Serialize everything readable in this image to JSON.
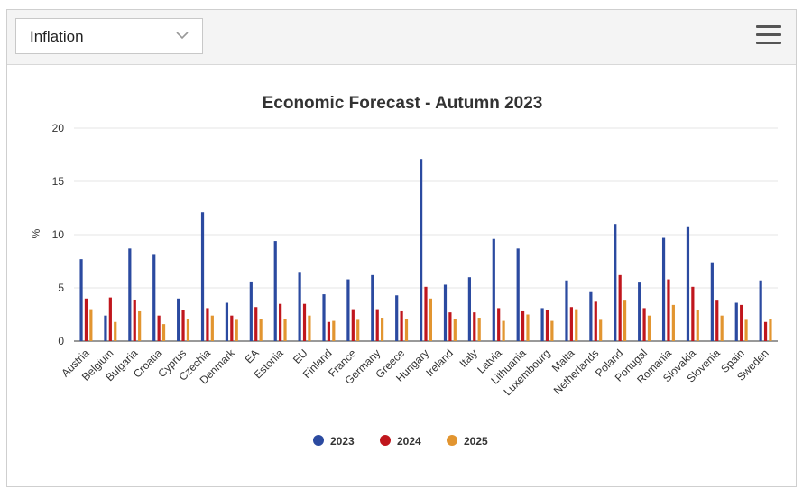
{
  "dropdown": {
    "selected": "Inflation"
  },
  "colors": {
    "2023": "#2b4aa0",
    "2024": "#c0161d",
    "2025": "#e29530",
    "grid": "#e6e6e6",
    "axis": "#333333"
  },
  "icons": {
    "dropdown": "chevron-down-icon",
    "menu": "hamburger-menu-icon"
  },
  "chart_data": {
    "type": "bar",
    "title": "Economic Forecast - Autumn 2023",
    "ylabel": "%",
    "xlabel": "",
    "ylim": [
      0,
      20
    ],
    "yticks": [
      "0",
      "5",
      "10",
      "15",
      "20"
    ],
    "grid": true,
    "legend_position": "bottom-center",
    "categories": [
      "Austria",
      "Belgium",
      "Bulgaria",
      "Croatia",
      "Cyprus",
      "Czechia",
      "Denmark",
      "EA",
      "Estonia",
      "EU",
      "Finland",
      "France",
      "Germany",
      "Greece",
      "Hungary",
      "Ireland",
      "Italy",
      "Latvia",
      "Lithuania",
      "Luxembourg",
      "Malta",
      "Netherlands",
      "Poland",
      "Portugal",
      "Romania",
      "Slovakia",
      "Slovenia",
      "Spain",
      "Sweden"
    ],
    "series": [
      {
        "name": "2023",
        "values": [
          7.7,
          2.4,
          8.7,
          8.1,
          4.0,
          12.1,
          3.6,
          5.6,
          9.4,
          6.5,
          4.4,
          5.8,
          6.2,
          4.3,
          17.1,
          5.3,
          6.0,
          9.6,
          8.7,
          3.1,
          5.7,
          4.6,
          11.0,
          5.5,
          9.7,
          10.7,
          7.4,
          3.6,
          5.7
        ]
      },
      {
        "name": "2024",
        "values": [
          4.0,
          4.1,
          3.9,
          2.4,
          2.9,
          3.1,
          2.4,
          3.2,
          3.5,
          3.5,
          1.8,
          3.0,
          3.0,
          2.8,
          5.1,
          2.7,
          2.7,
          3.1,
          2.8,
          2.9,
          3.2,
          3.7,
          6.2,
          3.1,
          5.8,
          5.1,
          3.8,
          3.4,
          1.8
        ]
      },
      {
        "name": "2025",
        "values": [
          3.0,
          1.8,
          2.8,
          1.6,
          2.1,
          2.4,
          2.0,
          2.1,
          2.1,
          2.4,
          1.9,
          2.0,
          2.2,
          2.1,
          4.0,
          2.1,
          2.2,
          1.9,
          2.5,
          1.9,
          3.0,
          2.0,
          3.8,
          2.4,
          3.4,
          2.9,
          2.4,
          2.0,
          2.1
        ]
      }
    ]
  }
}
